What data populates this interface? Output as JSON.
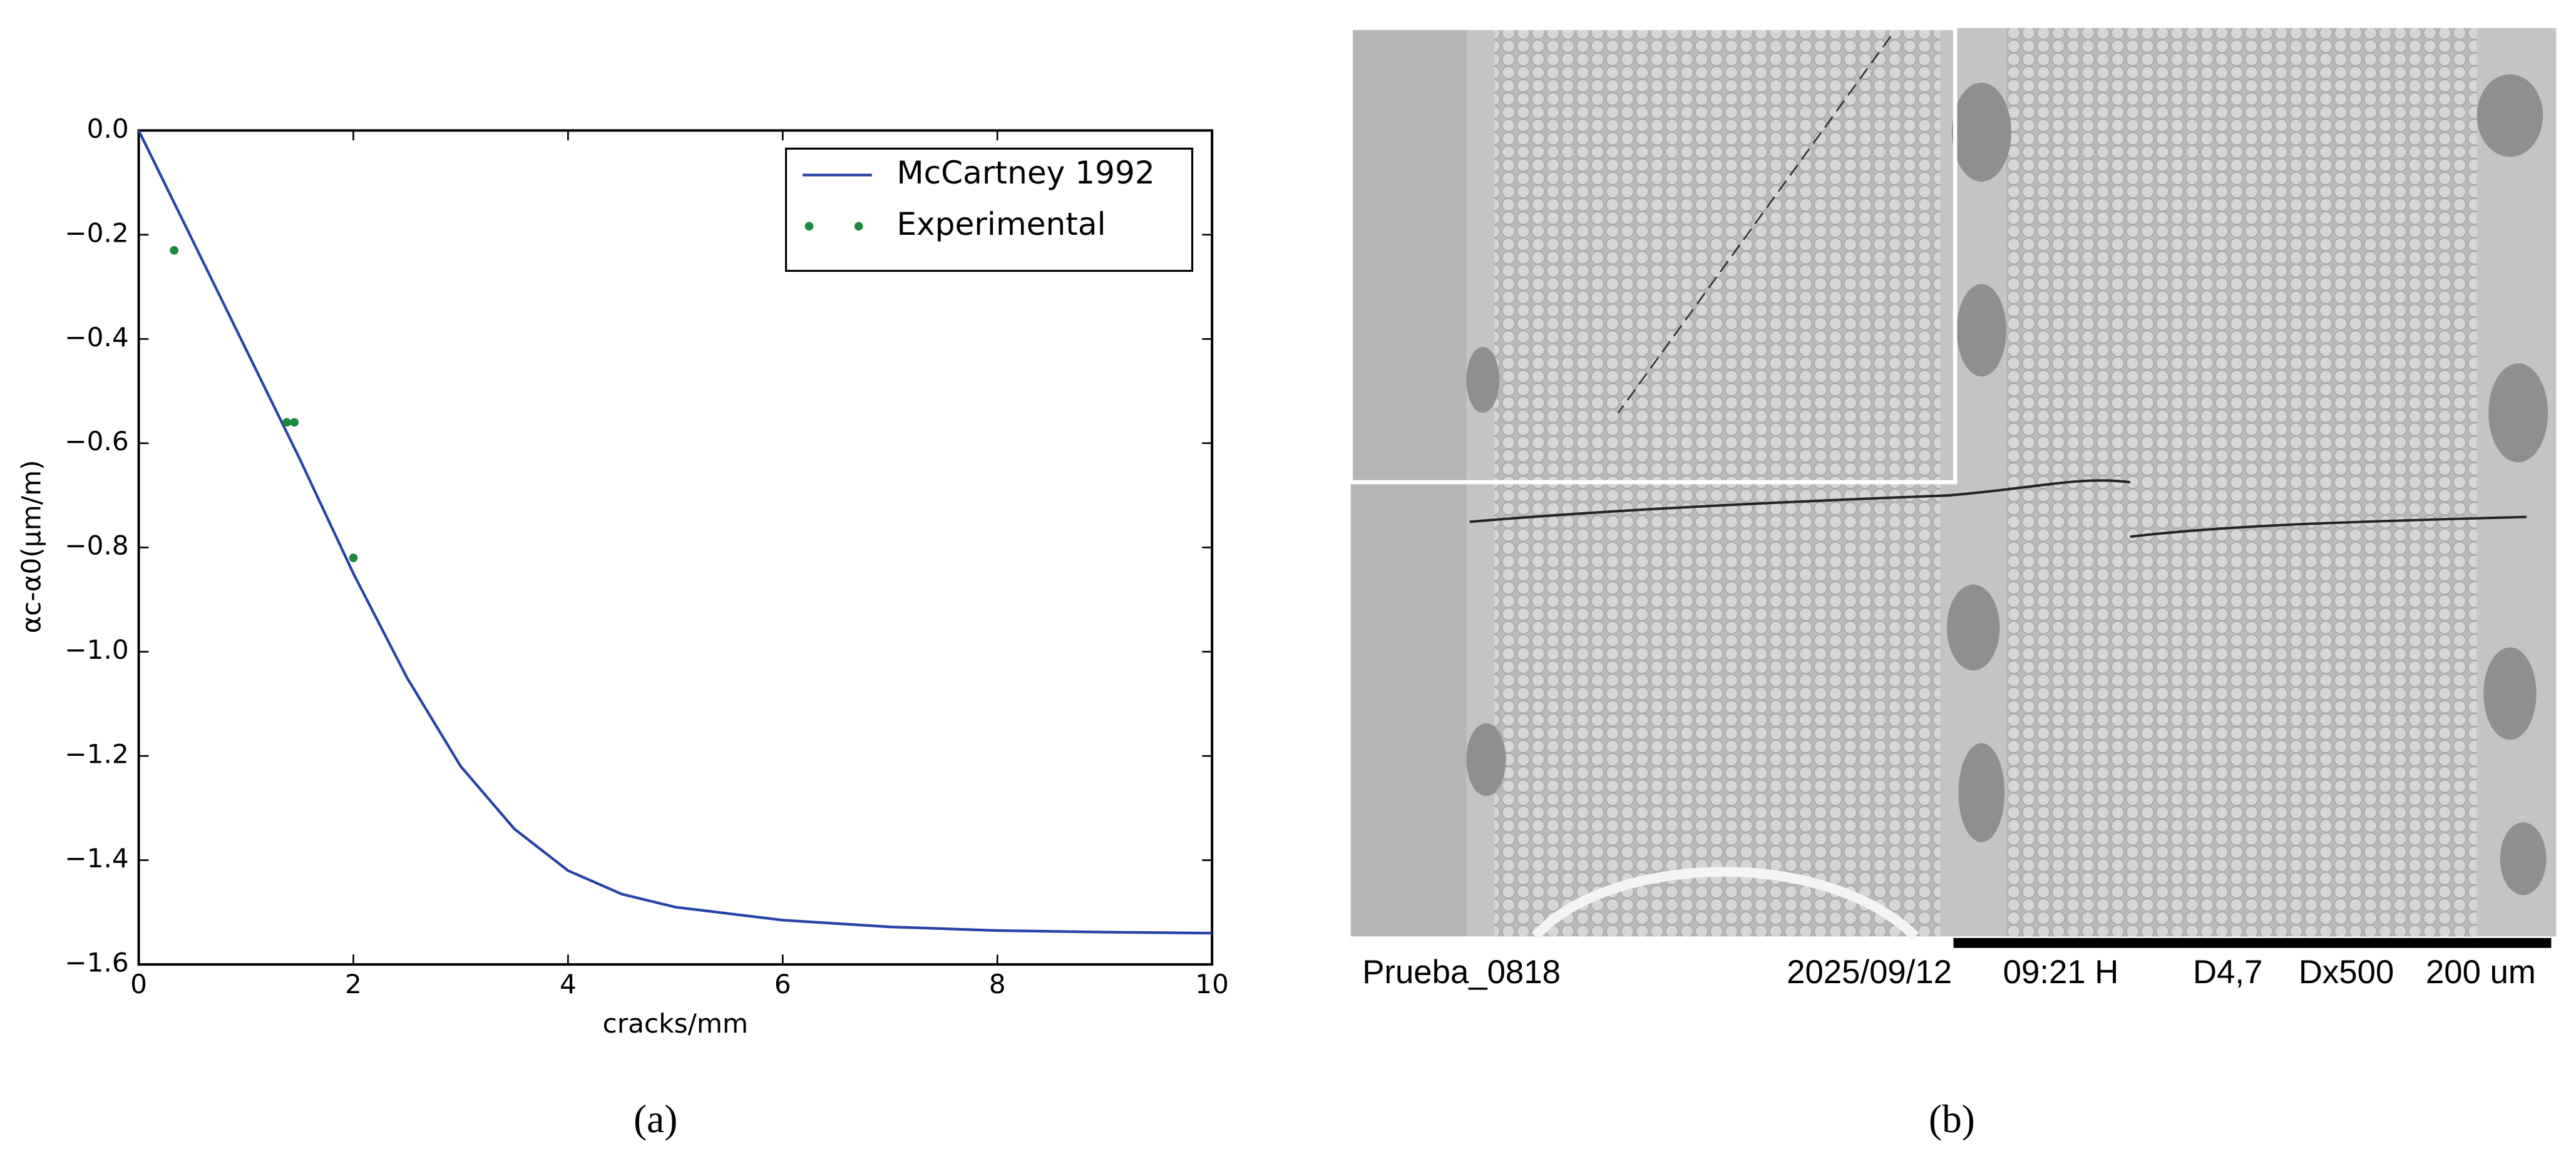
{
  "chart_data": {
    "type": "line",
    "xlabel": "cracks/mm",
    "ylabel": "αc-α0(μm/m)",
    "xlim": [
      0,
      10
    ],
    "xticks": [
      0,
      2,
      4,
      6,
      8,
      10
    ],
    "ylim": [
      -1.6,
      0
    ],
    "yticks": [
      {
        "value": 0,
        "label": "0.0"
      },
      {
        "value": -0.2,
        "label": "−0.2"
      },
      {
        "value": -0.4,
        "label": "−0.4"
      },
      {
        "value": -0.6,
        "label": "−0.6"
      },
      {
        "value": -0.8,
        "label": "−0.8"
      },
      {
        "value": -1.0,
        "label": "−1.0"
      },
      {
        "value": -1.2,
        "label": "−1.2"
      },
      {
        "value": -1.4,
        "label": "−1.4"
      },
      {
        "value": -1.6,
        "label": "−1.6"
      }
    ],
    "legend": "upper right",
    "series": [
      {
        "name": "McCartney 1992",
        "color": "#2642a8",
        "type": "line",
        "x": [
          0,
          0.5,
          1,
          1.5,
          2,
          2.5,
          3,
          3.5,
          4,
          4.5,
          5,
          6,
          7,
          8,
          9,
          10
        ],
        "values": [
          0,
          -0.21,
          -0.42,
          -0.63,
          -0.85,
          -1.05,
          -1.22,
          -1.34,
          -1.42,
          -1.465,
          -1.49,
          -1.515,
          -1.528,
          -1.535,
          -1.538,
          -1.54
        ]
      },
      {
        "name": "Experimental",
        "color": "#1a8a3e",
        "type": "scatter",
        "x": [
          0.33,
          1.38,
          1.45,
          2.0
        ],
        "values": [
          -0.23,
          -0.56,
          -0.56,
          -0.82
        ]
      }
    ]
  },
  "figure": {
    "caption_a": "(a)",
    "caption_b": "(b)",
    "micrograph": {
      "sample": "Prueba_0818",
      "date": "2025/09/12",
      "time": "09:21 H",
      "distance": "D4,7",
      "magnification": "Dx500",
      "scale": "200 um"
    }
  }
}
